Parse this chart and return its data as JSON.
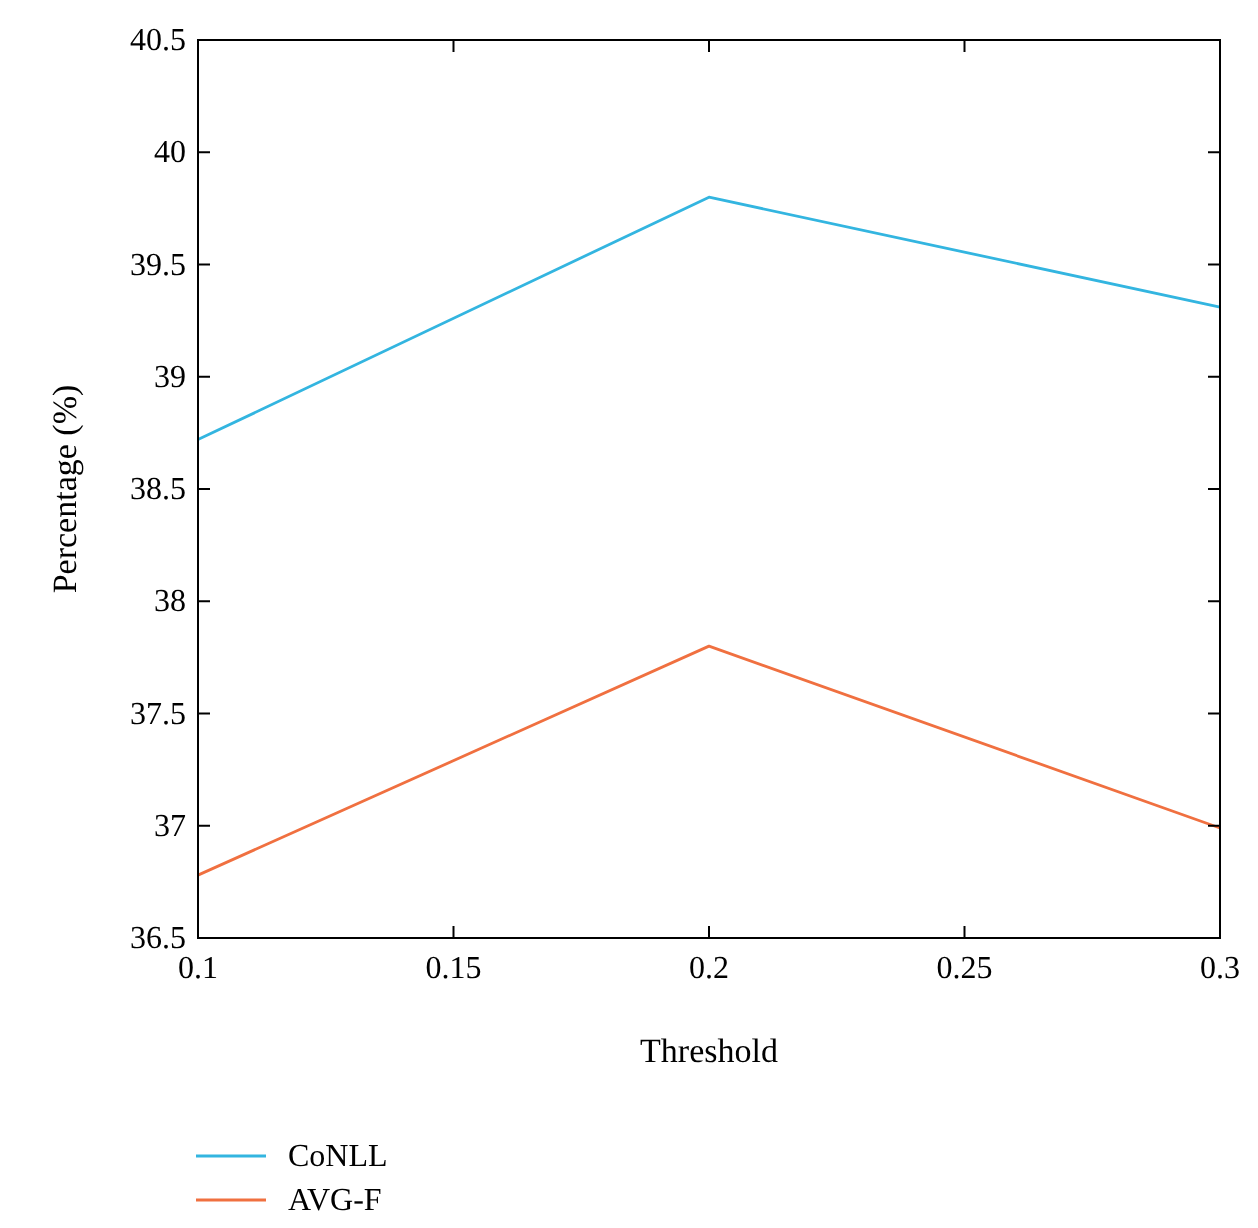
{
  "chart_data": {
    "type": "line",
    "xlabel": "Threshold",
    "ylabel": "Percentage (%)",
    "x": [
      0.1,
      0.2,
      0.3
    ],
    "series": [
      {
        "name": "CoNLL",
        "color": "#33b5e0",
        "values": [
          38.72,
          39.8,
          39.31
        ]
      },
      {
        "name": "AVG-F",
        "color": "#f07040",
        "values": [
          36.78,
          37.8,
          36.99
        ]
      }
    ],
    "xlim": [
      0.1,
      0.3
    ],
    "xticks": [
      0.1,
      0.15,
      0.2,
      0.25,
      0.3
    ],
    "ylim": [
      36.5,
      40.5
    ],
    "yticks": [
      36.5,
      37,
      37.5,
      38,
      38.5,
      39,
      39.5,
      40,
      40.5
    ],
    "grid": false,
    "legend": "bottom",
    "marker": "none",
    "line_style": "solid"
  }
}
